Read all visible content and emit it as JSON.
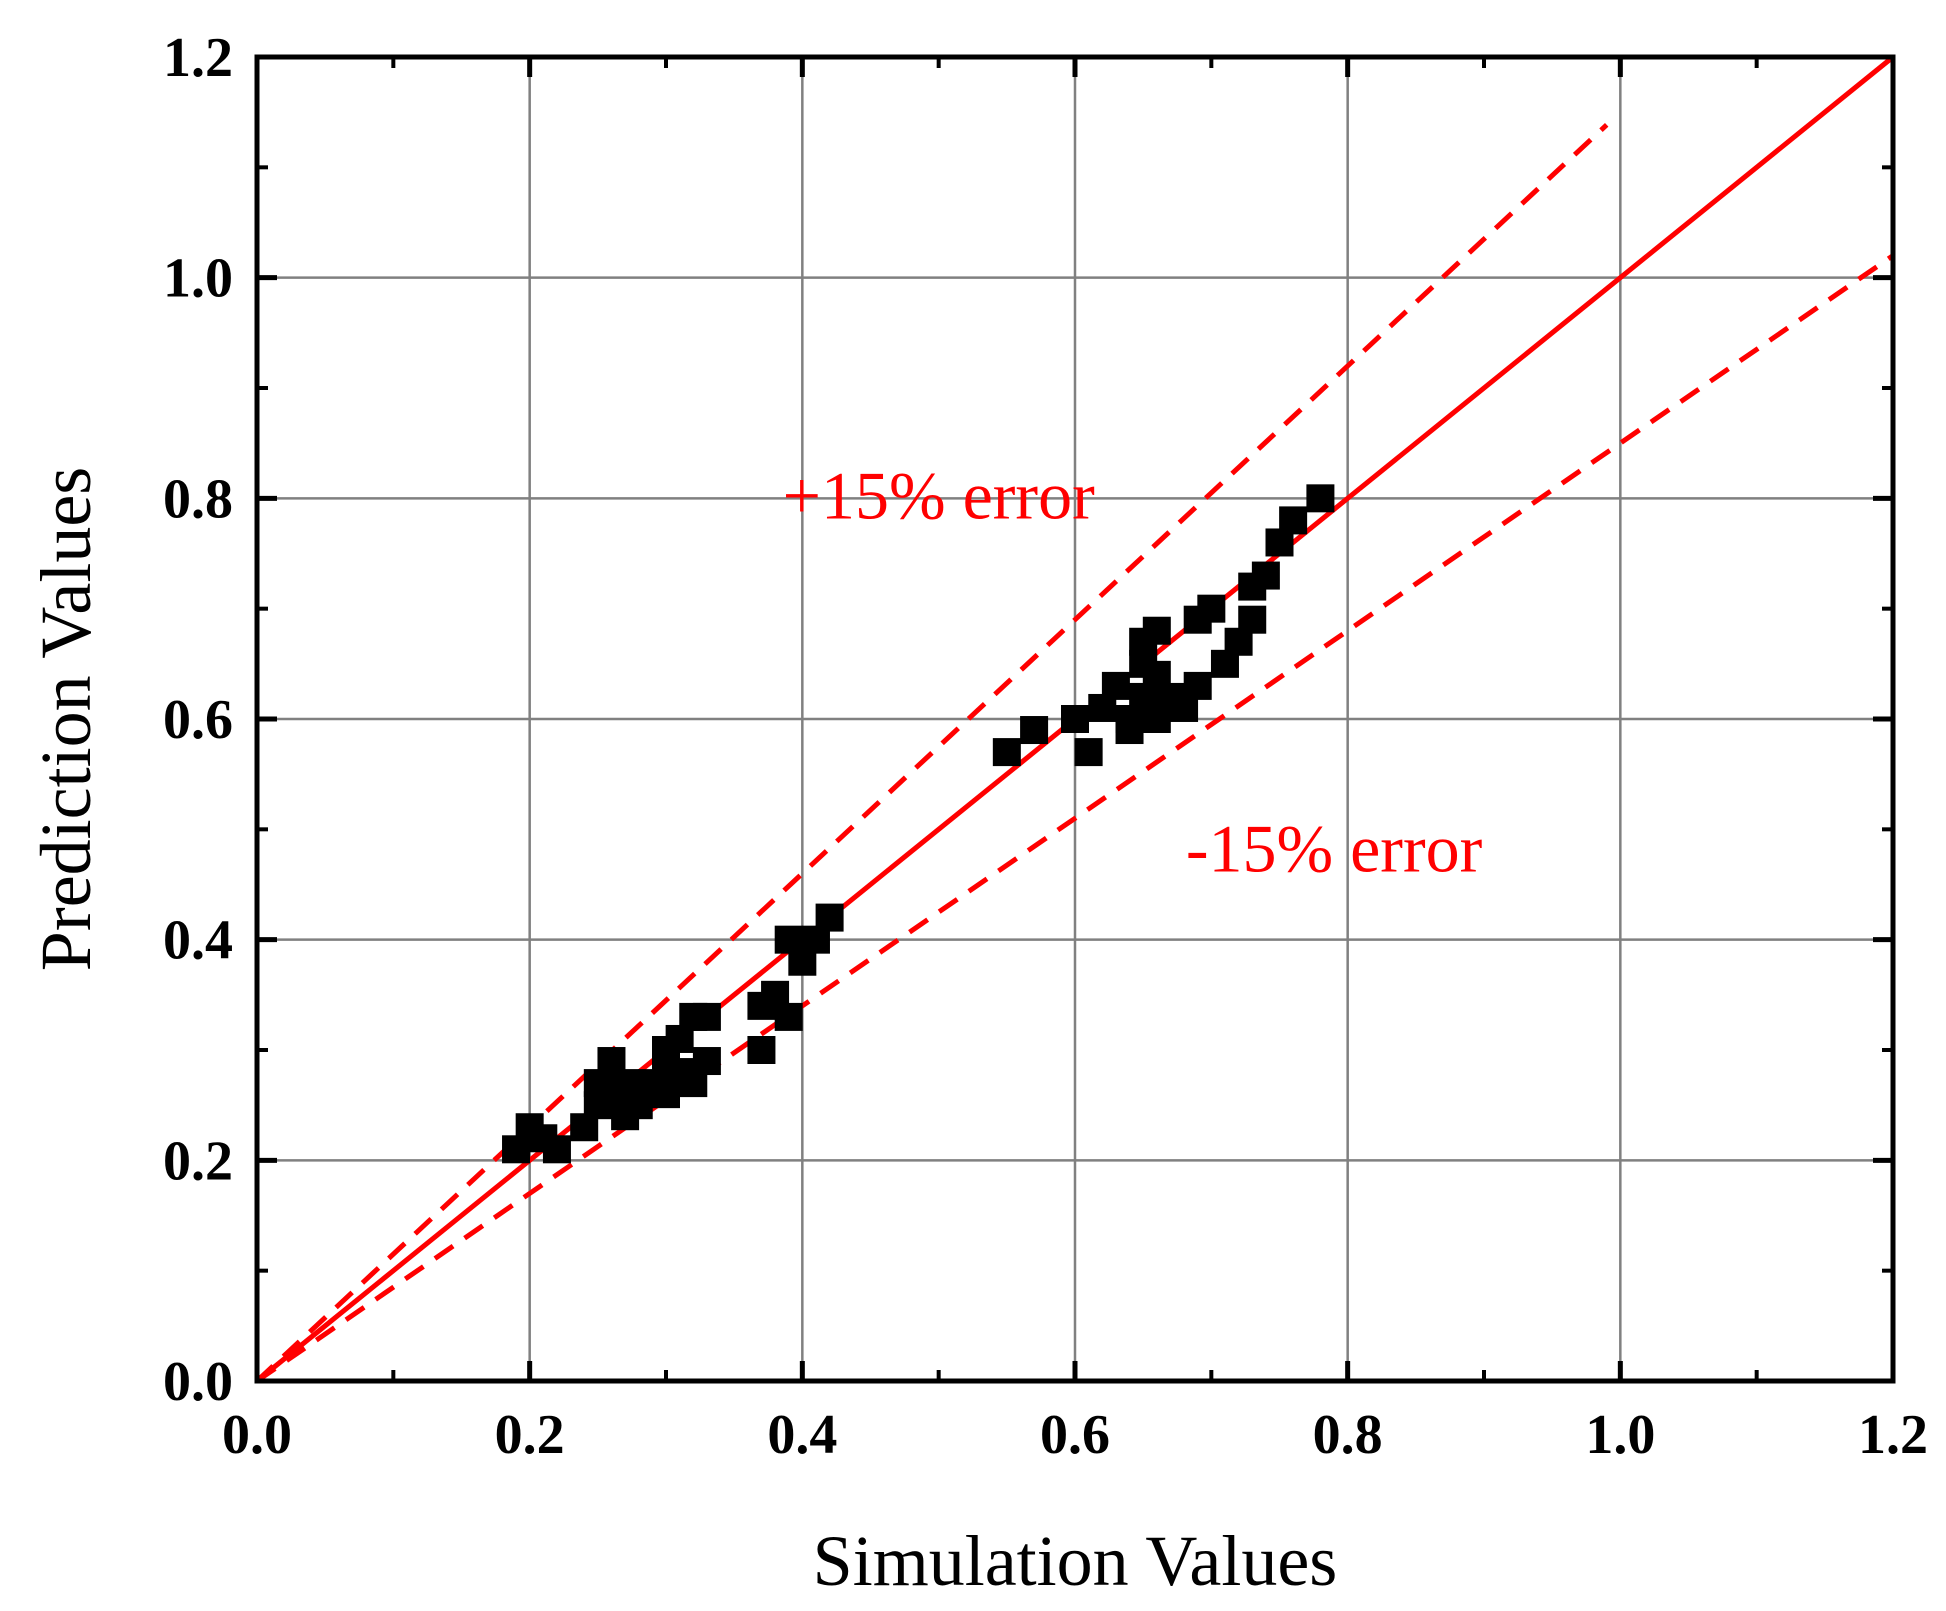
{
  "chart_data": {
    "type": "scatter",
    "xlabel": "Simulation Values",
    "ylabel": "Prediction Values",
    "xlim": [
      0.0,
      1.2
    ],
    "ylim": [
      0.0,
      1.2
    ],
    "xticks": [
      "0.0",
      "0.2",
      "0.4",
      "0.6",
      "0.8",
      "1.0",
      "1.2"
    ],
    "yticks": [
      "0.0",
      "0.2",
      "0.4",
      "0.6",
      "0.8",
      "1.0",
      "1.2"
    ],
    "grid": true,
    "colors": {
      "points": "#000000",
      "lines": "#ff0000",
      "grid": "#808080"
    },
    "annotations": [
      {
        "text": "+15% error",
        "x": 0.5,
        "y": 0.8
      },
      {
        "text": "-15% error",
        "x": 0.79,
        "y": 0.48
      }
    ],
    "reference_lines": [
      {
        "style": "solid",
        "slope": 1.0,
        "x_range": [
          0.0,
          1.2
        ]
      },
      {
        "style": "dashed",
        "slope": 1.15,
        "x_range": [
          0.0,
          0.99
        ]
      },
      {
        "style": "dashed",
        "slope": 0.85,
        "x_range": [
          0.0,
          1.2
        ]
      }
    ],
    "series": [
      {
        "marker": "square",
        "points": [
          [
            0.19,
            0.21
          ],
          [
            0.2,
            0.23
          ],
          [
            0.21,
            0.22
          ],
          [
            0.22,
            0.21
          ],
          [
            0.24,
            0.23
          ],
          [
            0.25,
            0.25
          ],
          [
            0.25,
            0.27
          ],
          [
            0.26,
            0.26
          ],
          [
            0.26,
            0.29
          ],
          [
            0.27,
            0.24
          ],
          [
            0.27,
            0.27
          ],
          [
            0.28,
            0.25
          ],
          [
            0.29,
            0.27
          ],
          [
            0.3,
            0.29
          ],
          [
            0.3,
            0.3
          ],
          [
            0.3,
            0.26
          ],
          [
            0.31,
            0.28
          ],
          [
            0.31,
            0.31
          ],
          [
            0.32,
            0.33
          ],
          [
            0.32,
            0.27
          ],
          [
            0.33,
            0.29
          ],
          [
            0.33,
            0.33
          ],
          [
            0.37,
            0.3
          ],
          [
            0.37,
            0.34
          ],
          [
            0.38,
            0.35
          ],
          [
            0.39,
            0.33
          ],
          [
            0.39,
            0.4
          ],
          [
            0.4,
            0.38
          ],
          [
            0.41,
            0.4
          ],
          [
            0.42,
            0.42
          ],
          [
            0.55,
            0.57
          ],
          [
            0.57,
            0.59
          ],
          [
            0.6,
            0.6
          ],
          [
            0.61,
            0.57
          ],
          [
            0.62,
            0.61
          ],
          [
            0.63,
            0.63
          ],
          [
            0.64,
            0.59
          ],
          [
            0.64,
            0.6
          ],
          [
            0.65,
            0.62
          ],
          [
            0.65,
            0.65
          ],
          [
            0.65,
            0.67
          ],
          [
            0.66,
            0.6
          ],
          [
            0.66,
            0.64
          ],
          [
            0.66,
            0.68
          ],
          [
            0.67,
            0.62
          ],
          [
            0.68,
            0.61
          ],
          [
            0.69,
            0.63
          ],
          [
            0.69,
            0.69
          ],
          [
            0.7,
            0.7
          ],
          [
            0.71,
            0.65
          ],
          [
            0.72,
            0.67
          ],
          [
            0.73,
            0.69
          ],
          [
            0.73,
            0.72
          ],
          [
            0.74,
            0.73
          ],
          [
            0.75,
            0.76
          ],
          [
            0.76,
            0.78
          ],
          [
            0.78,
            0.8
          ]
        ]
      }
    ]
  }
}
